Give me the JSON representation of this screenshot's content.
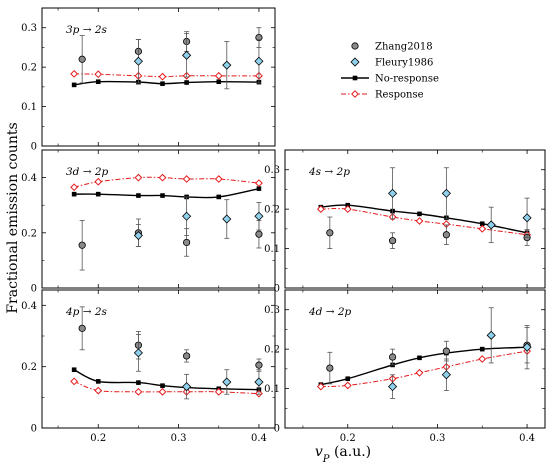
{
  "figure": {
    "ylabel": "Fractional emission counts",
    "xlabel": "v",
    "xlabel_sub": "P",
    "xlabel_unit": " (a.u.)"
  },
  "legend": {
    "entries": [
      {
        "key": "zhang",
        "label": "Zhang2018"
      },
      {
        "key": "fleury",
        "label": "Fleury1986"
      },
      {
        "key": "noresp",
        "label": "No-response"
      },
      {
        "key": "resp",
        "label": "Response"
      }
    ]
  },
  "colors": {
    "zhang_fill": "#8a8a8a",
    "fleury_fill": "#8fd0ec",
    "noresp_line": "#000000",
    "resp_line": "#e41a1c",
    "axis": "#000000",
    "errorbar": "#555555"
  },
  "chart_data": [
    {
      "id": "p3s",
      "type": "line",
      "panel_label": "3p → 2s",
      "xlim": [
        0.13,
        0.42
      ],
      "ylim": [
        0,
        0.35
      ],
      "xticks": [
        0.2,
        0.3,
        0.4
      ],
      "xtick_labels": [
        "0.2",
        "0.3",
        "0.4"
      ],
      "yticks": [
        0,
        0.1,
        0.2,
        0.3
      ],
      "ytick_labels": [
        "0",
        "0.1",
        "0.2",
        "0.3"
      ],
      "show_xtick_labels": false,
      "legend": true,
      "series": [
        {
          "key": "noresp",
          "name": "No-response",
          "x": [
            0.17,
            0.2,
            0.25,
            0.28,
            0.31,
            0.35,
            0.4
          ],
          "y": [
            0.155,
            0.163,
            0.162,
            0.158,
            0.161,
            0.163,
            0.162
          ]
        },
        {
          "key": "resp",
          "name": "Response",
          "x": [
            0.17,
            0.2,
            0.25,
            0.28,
            0.31,
            0.35,
            0.4
          ],
          "y": [
            0.183,
            0.182,
            0.178,
            0.176,
            0.178,
            0.178,
            0.178
          ]
        },
        {
          "key": "zhang",
          "name": "Zhang2018",
          "x": [
            0.18,
            0.25,
            0.31,
            0.4
          ],
          "y": [
            0.22,
            0.24,
            0.265,
            0.275
          ],
          "err": [
            0.06,
            0.03,
            0.025,
            0.025
          ]
        },
        {
          "key": "fleury",
          "name": "Fleury1986",
          "x": [
            0.25,
            0.31,
            0.36,
            0.4
          ],
          "y": [
            0.215,
            0.23,
            0.205,
            0.215
          ],
          "err": [
            0.055,
            0.055,
            0.06,
            0.055
          ]
        }
      ]
    },
    {
      "id": "d2p",
      "type": "line",
      "panel_label": "3d → 2p",
      "xlim": [
        0.13,
        0.42
      ],
      "ylim": [
        0,
        0.5
      ],
      "xticks": [
        0.2,
        0.3,
        0.4
      ],
      "xtick_labels": [
        "0.2",
        "0.3",
        "0.4"
      ],
      "yticks": [
        0,
        0.2,
        0.4
      ],
      "ytick_labels": [
        "0",
        "0.2",
        "0.4"
      ],
      "show_xtick_labels": false,
      "legend": false,
      "series": [
        {
          "key": "noresp",
          "name": "No-response",
          "x": [
            0.17,
            0.2,
            0.25,
            0.28,
            0.31,
            0.35,
            0.4
          ],
          "y": [
            0.34,
            0.34,
            0.335,
            0.335,
            0.33,
            0.33,
            0.36
          ]
        },
        {
          "key": "resp",
          "name": "Response",
          "x": [
            0.17,
            0.2,
            0.25,
            0.28,
            0.31,
            0.35,
            0.4
          ],
          "y": [
            0.365,
            0.385,
            0.4,
            0.4,
            0.395,
            0.395,
            0.38
          ]
        },
        {
          "key": "zhang",
          "name": "Zhang2018",
          "x": [
            0.18,
            0.25,
            0.31,
            0.4
          ],
          "y": [
            0.155,
            0.2,
            0.165,
            0.195
          ],
          "err": [
            0.09,
            0.05,
            0.05,
            0.05
          ]
        },
        {
          "key": "fleury",
          "name": "Fleury1986",
          "x": [
            0.25,
            0.31,
            0.36,
            0.4
          ],
          "y": [
            0.19,
            0.26,
            0.25,
            0.26
          ],
          "err": [
            0.04,
            0.07,
            0.07,
            0.05
          ]
        }
      ]
    },
    {
      "id": "s2p",
      "type": "line",
      "panel_label": "4s → 2p",
      "xlim": [
        0.13,
        0.42
      ],
      "ylim": [
        0,
        0.35
      ],
      "xticks": [
        0.2,
        0.3,
        0.4
      ],
      "xtick_labels": [
        "0.2",
        "0.3",
        "0.4"
      ],
      "yticks": [
        0,
        0.1,
        0.2,
        0.3
      ],
      "ytick_labels": [
        "0",
        "0.1",
        "0.2",
        "0.3"
      ],
      "show_xtick_labels": false,
      "legend": false,
      "series": [
        {
          "key": "noresp",
          "name": "No-response",
          "x": [
            0.17,
            0.2,
            0.25,
            0.28,
            0.31,
            0.35,
            0.4
          ],
          "y": [
            0.205,
            0.21,
            0.195,
            0.188,
            0.178,
            0.163,
            0.14
          ]
        },
        {
          "key": "resp",
          "name": "Response",
          "x": [
            0.17,
            0.2,
            0.25,
            0.28,
            0.31,
            0.35,
            0.4
          ],
          "y": [
            0.2,
            0.2,
            0.18,
            0.17,
            0.162,
            0.15,
            0.135
          ]
        },
        {
          "key": "zhang",
          "name": "Zhang2018",
          "x": [
            0.18,
            0.25,
            0.31,
            0.4
          ],
          "y": [
            0.14,
            0.12,
            0.135,
            0.128
          ],
          "err": [
            0.04,
            0.02,
            0.025,
            0.02
          ]
        },
        {
          "key": "fleury",
          "name": "Fleury1986",
          "x": [
            0.25,
            0.31,
            0.36,
            0.4
          ],
          "y": [
            0.24,
            0.24,
            0.16,
            0.178
          ],
          "err": [
            0.065,
            0.065,
            0.045,
            0.05
          ]
        }
      ]
    },
    {
      "id": "p2s4",
      "type": "line",
      "panel_label": "4p → 2s",
      "xlim": [
        0.13,
        0.42
      ],
      "ylim": [
        0,
        0.45
      ],
      "xticks": [
        0.2,
        0.3,
        0.4
      ],
      "xtick_labels": [
        "0.2",
        "0.3",
        "0.4"
      ],
      "yticks": [
        0,
        0.2,
        0.4
      ],
      "ytick_labels": [
        "0",
        "0.2",
        "0.4"
      ],
      "show_xtick_labels": true,
      "legend": false,
      "series": [
        {
          "key": "noresp",
          "name": "No-response",
          "x": [
            0.17,
            0.2,
            0.25,
            0.28,
            0.31,
            0.35,
            0.4
          ],
          "y": [
            0.19,
            0.152,
            0.148,
            0.138,
            0.132,
            0.128,
            0.125
          ]
        },
        {
          "key": "resp",
          "name": "Response",
          "x": [
            0.17,
            0.2,
            0.25,
            0.28,
            0.31,
            0.35,
            0.4
          ],
          "y": [
            0.152,
            0.122,
            0.118,
            0.118,
            0.118,
            0.118,
            0.112
          ]
        },
        {
          "key": "zhang",
          "name": "Zhang2018",
          "x": [
            0.18,
            0.25,
            0.31,
            0.4
          ],
          "y": [
            0.325,
            0.27,
            0.235,
            0.205
          ],
          "err": [
            0.07,
            0.045,
            0.02,
            0.02
          ]
        },
        {
          "key": "fleury",
          "name": "Fleury1986",
          "x": [
            0.25,
            0.31,
            0.36,
            0.4
          ],
          "y": [
            0.245,
            0.135,
            0.15,
            0.15
          ],
          "err": [
            0.06,
            0.04,
            0.04,
            0.04
          ]
        }
      ]
    },
    {
      "id": "d2p4",
      "type": "line",
      "panel_label": "4d → 2p",
      "xlim": [
        0.13,
        0.42
      ],
      "ylim": [
        0,
        0.35
      ],
      "xticks": [
        0.2,
        0.3,
        0.4
      ],
      "xtick_labels": [
        "0.2",
        "0.3",
        "0.4"
      ],
      "yticks": [
        0,
        0.1,
        0.2,
        0.3
      ],
      "ytick_labels": [
        "0",
        "0.1",
        "0.2",
        "0.3"
      ],
      "show_xtick_labels": true,
      "legend": false,
      "series": [
        {
          "key": "noresp",
          "name": "No-response",
          "x": [
            0.17,
            0.2,
            0.25,
            0.28,
            0.31,
            0.35,
            0.4
          ],
          "y": [
            0.11,
            0.125,
            0.16,
            0.178,
            0.19,
            0.2,
            0.205
          ]
        },
        {
          "key": "resp",
          "name": "Response",
          "x": [
            0.17,
            0.2,
            0.25,
            0.28,
            0.31,
            0.35,
            0.4
          ],
          "y": [
            0.105,
            0.108,
            0.125,
            0.14,
            0.155,
            0.175,
            0.195
          ]
        },
        {
          "key": "zhang",
          "name": "Zhang2018",
          "x": [
            0.18,
            0.25,
            0.31,
            0.4
          ],
          "y": [
            0.152,
            0.18,
            0.195,
            0.21
          ],
          "err": [
            0.04,
            0.02,
            0.025,
            0.045
          ]
        },
        {
          "key": "fleury",
          "name": "Fleury1986",
          "x": [
            0.25,
            0.31,
            0.36,
            0.4
          ],
          "y": [
            0.105,
            0.135,
            0.235,
            0.205
          ],
          "err": [
            0.03,
            0.04,
            0.07,
            0.055
          ]
        }
      ]
    }
  ]
}
